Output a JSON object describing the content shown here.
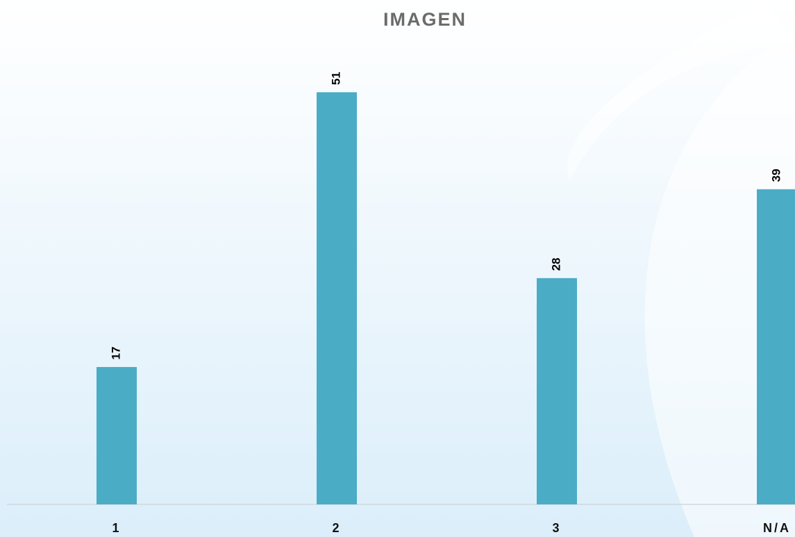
{
  "chart_data": {
    "type": "bar",
    "title": "IMAGEN",
    "categories": [
      "1",
      "2",
      "3",
      "N/A"
    ],
    "values": [
      17,
      51,
      28,
      39
    ],
    "color": "#4bacc6",
    "ylim": [
      0,
      51
    ]
  }
}
